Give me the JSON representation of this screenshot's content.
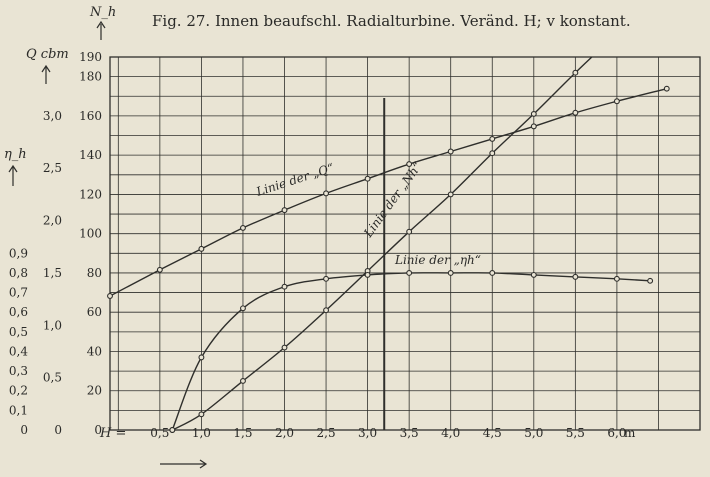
{
  "chart_data": {
    "type": "line",
    "title": "Fig. 27.  Innen beaufschl. Radialturbine.  Veränd. H; v konstant.",
    "xlabel": "H =",
    "x_unit": "m",
    "x_ticks": [
      0.5,
      1.0,
      1.5,
      2.0,
      2.5,
      3.0,
      3.5,
      4.0,
      4.5,
      5.0,
      5.5,
      6.0
    ],
    "x_tick_labels": [
      "0,5",
      "1,0",
      "1,5",
      "2,0",
      "2,5",
      "3,0",
      "3,5",
      "4,0",
      "4,5",
      "5,0",
      "5,5",
      "6,0"
    ],
    "xlim": [
      -0.1,
      7.0
    ],
    "grid": true,
    "axes": {
      "Nh": {
        "label": "N_h",
        "ylim": [
          0,
          190
        ],
        "ticks": [
          0,
          20,
          40,
          60,
          80,
          100,
          120,
          140,
          160,
          180,
          190
        ],
        "tick_labels": [
          "0",
          "20",
          "40",
          "60",
          "80",
          "100",
          "120",
          "140",
          "160",
          "180",
          "190"
        ]
      },
      "Q": {
        "label": "Q cbm",
        "ticks": [
          0,
          0.5,
          1.0,
          1.5,
          2.0,
          2.5,
          3.0
        ],
        "tick_labels": [
          "0",
          "0,5",
          "1,0",
          "1,5",
          "2,0",
          "2,5",
          "3,0"
        ],
        "units_per_nh": 0.01875
      },
      "eta": {
        "label": "η_h",
        "ticks": [
          0,
          0.1,
          0.2,
          0.3,
          0.4,
          0.5,
          0.6,
          0.7,
          0.8,
          0.9
        ],
        "tick_labels": [
          "0",
          "0,1",
          "0,2",
          "0,3",
          "0,4",
          "0,5",
          "0,6",
          "0,7",
          "0,8",
          "0,9"
        ],
        "units_per_nh": 0.01
      }
    },
    "marker_x": 3.2,
    "series": [
      {
        "name": "Linie der „Q“",
        "axis": "Q",
        "x": [
          -0.1,
          0.5,
          1.0,
          1.5,
          2.0,
          2.5,
          3.0,
          3.5,
          4.0,
          4.5,
          5.0,
          5.5,
          6.0,
          6.6
        ],
        "y": [
          1.28,
          1.53,
          1.73,
          1.93,
          2.1,
          2.26,
          2.4,
          2.54,
          2.66,
          2.78,
          2.9,
          3.03,
          3.14,
          3.26
        ]
      },
      {
        "name": "Linie der „Nh“",
        "axis": "Nh",
        "x": [
          0.65,
          1.0,
          1.5,
          2.0,
          2.5,
          3.0,
          3.5,
          4.0,
          4.5,
          5.0,
          5.5,
          5.95
        ],
        "y": [
          0,
          8,
          25,
          42,
          61,
          81,
          101,
          120,
          141,
          161,
          182,
          200
        ]
      },
      {
        "name": "Linie der „ηh“",
        "axis": "eta",
        "x": [
          0.65,
          1.0,
          1.5,
          2.0,
          2.5,
          3.0,
          3.5,
          4.0,
          4.5,
          5.0,
          5.5,
          6.0,
          6.4
        ],
        "y": [
          0,
          0.37,
          0.62,
          0.73,
          0.77,
          0.79,
          0.8,
          0.8,
          0.8,
          0.79,
          0.78,
          0.77,
          0.76
        ]
      }
    ]
  }
}
